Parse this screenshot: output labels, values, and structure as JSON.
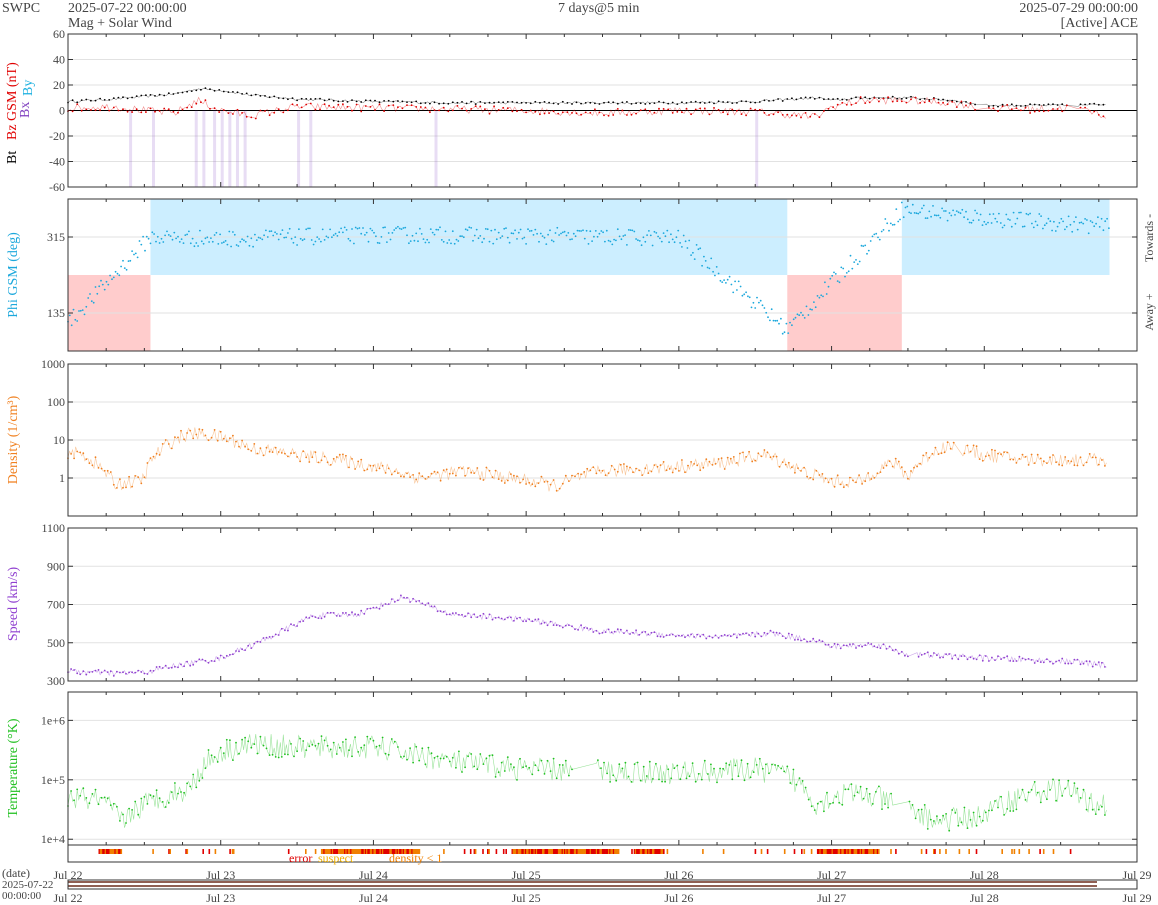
{
  "header": {
    "agency": "SWPC",
    "start": "2025-07-22 00:00:00",
    "subtitle": "Mag + Solar Wind",
    "span": "7 days@5 min",
    "end": "2025-07-29 00:00:00",
    "source": "[Active] ACE"
  },
  "colors": {
    "bt": "#000000",
    "bz": "#e00000",
    "bx": "#8040c0",
    "by": "#1cb0e0",
    "phi": "#1ca8dc",
    "towards_fill": "#cceeff",
    "away_fill": "#ffcccc",
    "density": "#f08020",
    "speed": "#9040d0",
    "temperature": "#20c020",
    "error": "#e00000",
    "suspect": "#f0b000",
    "density_lt1": "#f08000"
  },
  "chart_data": [
    {
      "type": "line",
      "name": "mag",
      "ylabel": "Bt  Bz GSM (nT)",
      "legend_extra": [
        "Bx",
        "By"
      ],
      "ylim": [
        -60,
        60
      ],
      "yticks": [
        "60",
        "40",
        "20",
        "0",
        "-20",
        "-40",
        "-60"
      ],
      "x_unit": "days since 2025-07-22 00:00",
      "series": [
        {
          "name": "Bt",
          "x": [
            0,
            0.3,
            0.5,
            0.7,
            0.85,
            1.0,
            1.2,
            1.5,
            2.0,
            2.5,
            3.0,
            3.5,
            4.0,
            4.5,
            4.9,
            5.0,
            5.2,
            5.5,
            5.8,
            6.0,
            6.3,
            6.6,
            6.8
          ],
          "values": [
            7,
            9,
            11,
            13,
            17,
            16,
            12,
            9,
            7,
            6,
            6,
            6,
            6,
            7,
            10,
            8,
            10,
            10,
            8,
            4,
            4,
            4,
            5
          ]
        },
        {
          "name": "Bz",
          "x": [
            0,
            0.3,
            0.5,
            0.7,
            0.85,
            1.0,
            1.2,
            1.5,
            2.0,
            2.5,
            3.0,
            3.5,
            4.0,
            4.5,
            4.9,
            5.0,
            5.2,
            5.5,
            5.8,
            6.0,
            6.3,
            6.6,
            6.8
          ],
          "values": [
            2,
            3,
            0,
            -2,
            8,
            0,
            -4,
            3,
            2,
            1,
            0,
            -2,
            0,
            -1,
            -5,
            3,
            8,
            8,
            6,
            2,
            1,
            2,
            -4
          ]
        }
      ]
    },
    {
      "type": "line",
      "name": "phi",
      "ylabel": "Phi GSM (deg)",
      "ylim": [
        45,
        405
      ],
      "yticks": [
        "315",
        "135"
      ],
      "right_labels": [
        "Towards -",
        "Away +"
      ],
      "sectors": [
        {
          "label": "Away +",
          "from": 0,
          "to": 0.54
        },
        {
          "label": "Towards -",
          "from": 0.54,
          "to": 4.71
        },
        {
          "label": "Away +",
          "from": 4.71,
          "to": 5.46
        },
        {
          "label": "Towards -",
          "from": 5.46,
          "to": 6.82
        }
      ],
      "series": [
        {
          "name": "Phi",
          "x": [
            0,
            0.54,
            1.0,
            2.0,
            3.0,
            4.0,
            4.71,
            5.46,
            6.0,
            6.82
          ],
          "values": [
            110,
            315,
            310,
            320,
            318,
            312,
            95,
            380,
            360,
            340
          ]
        }
      ]
    },
    {
      "type": "line",
      "name": "density",
      "scale": "log",
      "ylabel": "Density (1/cm³)",
      "ylim": [
        0.1,
        1000
      ],
      "yticks": [
        "1000",
        "100",
        "10",
        "1"
      ],
      "series": [
        {
          "name": "Density",
          "x": [
            0,
            0.1,
            0.2,
            0.3,
            0.45,
            0.5,
            0.6,
            0.8,
            1.0,
            1.2,
            1.5,
            2.0,
            2.3,
            2.6,
            2.9,
            3.2,
            3.5,
            4.0,
            4.3,
            4.55,
            4.8,
            5.0,
            5.2,
            5.4,
            5.5,
            5.6,
            5.75,
            6.0,
            6.3,
            6.6,
            6.8
          ],
          "values": [
            5,
            4,
            2,
            0.7,
            0.8,
            1,
            5,
            15,
            12,
            6,
            4,
            2,
            1,
            1.5,
            1,
            0.6,
            1.5,
            2,
            2.5,
            4,
            1.5,
            0.8,
            0.8,
            2.5,
            1,
            3,
            7,
            4,
            3,
            3,
            3
          ]
        }
      ]
    },
    {
      "type": "line",
      "name": "speed",
      "ylabel": "Speed (km/s)",
      "ylim": [
        300,
        1100
      ],
      "yticks": [
        "1100",
        "900",
        "700",
        "500",
        "300"
      ],
      "series": [
        {
          "name": "Speed",
          "x": [
            0,
            0.3,
            0.5,
            0.7,
            1.0,
            1.3,
            1.6,
            1.9,
            2.2,
            2.5,
            3.0,
            3.5,
            4.0,
            4.3,
            4.6,
            4.9,
            5.0,
            5.3,
            5.5,
            5.8,
            6.0,
            6.3,
            6.6,
            6.8
          ],
          "values": [
            350,
            340,
            345,
            380,
            420,
            520,
            640,
            650,
            740,
            650,
            620,
            560,
            540,
            530,
            550,
            510,
            480,
            490,
            440,
            430,
            420,
            410,
            400,
            380
          ]
        }
      ]
    },
    {
      "type": "line",
      "name": "temperature",
      "scale": "log",
      "ylabel": "Temperature (°K)",
      "ylim": [
        8000,
        3000000
      ],
      "yticks": [
        "1e+6",
        "1e+5",
        "1e+4"
      ],
      "series": [
        {
          "name": "Temperature",
          "x": [
            0,
            0.2,
            0.35,
            0.6,
            0.8,
            1.0,
            1.2,
            1.5,
            2.0,
            2.5,
            3.0,
            3.5,
            4.0,
            4.5,
            4.7,
            4.9,
            5.1,
            5.3,
            5.5,
            5.7,
            6.0,
            6.3,
            6.5,
            6.7,
            6.8
          ],
          "values": [
            50000,
            45000,
            20000,
            50000,
            70000,
            300000,
            400000,
            350000,
            350000,
            200000,
            150000,
            140000,
            130000,
            150000,
            120000,
            40000,
            60000,
            50000,
            30000,
            20000,
            25000,
            60000,
            70000,
            40000,
            40000
          ]
        }
      ]
    }
  ],
  "status": {
    "labels": [
      "error",
      "suspect",
      "density < 1"
    ]
  },
  "xaxis": {
    "date_label": "(date)",
    "start_date": "2025-07-22",
    "start_time": "00:00:00",
    "ticks": [
      "Jul 22",
      "Jul 23",
      "Jul 24",
      "Jul 25",
      "Jul 26",
      "Jul 27",
      "Jul 28",
      "Jul 29"
    ]
  }
}
